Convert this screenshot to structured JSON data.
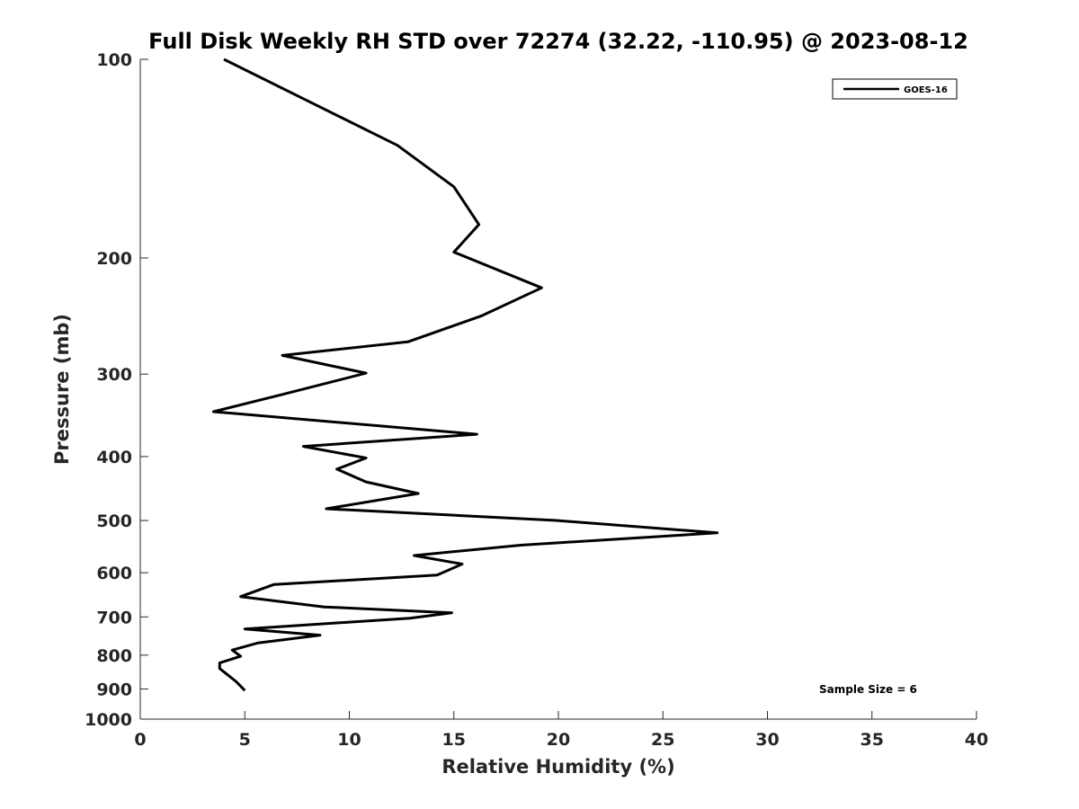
{
  "chart_data": {
    "type": "line",
    "title": "Full Disk Weekly RH STD over 72274 (32.22, -110.95) @ 2023-08-12",
    "xlabel": "Relative Humidity (%)",
    "ylabel": "Pressure (mb)",
    "xlim": [
      0,
      40
    ],
    "ylim": [
      100,
      1000
    ],
    "yscale": "log",
    "yreversed": true,
    "xticks": [
      0,
      5,
      10,
      15,
      20,
      25,
      30,
      35,
      40
    ],
    "xtick_labels": [
      "0",
      "5",
      "10",
      "15",
      "20",
      "25",
      "30",
      "35",
      "40"
    ],
    "yticks": [
      100,
      200,
      300,
      400,
      500,
      600,
      700,
      800,
      900,
      1000
    ],
    "ytick_labels": [
      "100",
      "200",
      "300",
      "400",
      "500",
      "600",
      "700",
      "800",
      "900",
      "1000"
    ],
    "legend": {
      "position": "top-right",
      "entries": [
        "GOES-16"
      ]
    },
    "annotation": "Sample Size = 6",
    "series": [
      {
        "name": "GOES-16",
        "color": "#000000",
        "points": [
          [
            4.0,
            100
          ],
          [
            12.3,
            135
          ],
          [
            15.0,
            156
          ],
          [
            16.2,
            178
          ],
          [
            15.0,
            196
          ],
          [
            19.2,
            222
          ],
          [
            16.3,
            245
          ],
          [
            12.8,
            268
          ],
          [
            6.8,
            281
          ],
          [
            10.8,
            299
          ],
          [
            6.8,
            322
          ],
          [
            3.5,
            342
          ],
          [
            16.1,
            370
          ],
          [
            7.8,
            386
          ],
          [
            10.8,
            402
          ],
          [
            9.4,
            418
          ],
          [
            10.8,
            437
          ],
          [
            13.3,
            455
          ],
          [
            8.9,
            480
          ],
          [
            19.9,
            500
          ],
          [
            27.6,
            522
          ],
          [
            18.2,
            545
          ],
          [
            13.1,
            565
          ],
          [
            15.4,
            582
          ],
          [
            14.2,
            605
          ],
          [
            6.4,
            625
          ],
          [
            4.8,
            652
          ],
          [
            8.8,
            676
          ],
          [
            14.9,
            690
          ],
          [
            12.9,
            703
          ],
          [
            5.0,
            730
          ],
          [
            8.6,
            746
          ],
          [
            5.6,
            767
          ],
          [
            4.4,
            786
          ],
          [
            4.8,
            803
          ],
          [
            3.8,
            822
          ],
          [
            3.8,
            838
          ],
          [
            4.2,
            858
          ],
          [
            4.6,
            878
          ],
          [
            5.0,
            905
          ]
        ]
      }
    ]
  }
}
